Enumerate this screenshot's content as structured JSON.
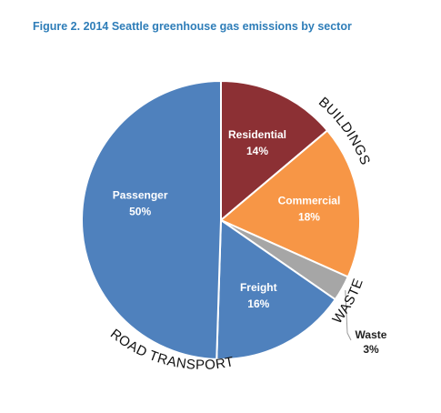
{
  "title": "Figure 2. 2014 Seattle greenhouse gas emissions by sector",
  "colors": {
    "title": "#2e7db8",
    "passenger": "#4f81bd",
    "freight": "#4f81bd",
    "residential": "#8c3034",
    "commercial": "#f79646",
    "waste": "#a6a6a6"
  },
  "chart_data": {
    "type": "pie",
    "title": "Figure 2. 2014 Seattle greenhouse gas emissions by sector",
    "slices": [
      {
        "label": "Residential",
        "pct_label": "14%",
        "value": 14,
        "group": "BUILDINGS"
      },
      {
        "label": "Commercial",
        "pct_label": "18%",
        "value": 18,
        "group": "BUILDINGS"
      },
      {
        "label": "Waste",
        "pct_label": "3%",
        "value": 3,
        "group": "WASTE"
      },
      {
        "label": "Freight",
        "pct_label": "16%",
        "value": 16,
        "group": "ROAD TRANSPORT"
      },
      {
        "label": "Passenger",
        "pct_label": "50%",
        "value": 50,
        "group": "ROAD TRANSPORT"
      }
    ],
    "groups": [
      "BUILDINGS",
      "WASTE",
      "ROAD TRANSPORT"
    ],
    "start_angle": "12 o'clock",
    "direction": "clockwise"
  }
}
